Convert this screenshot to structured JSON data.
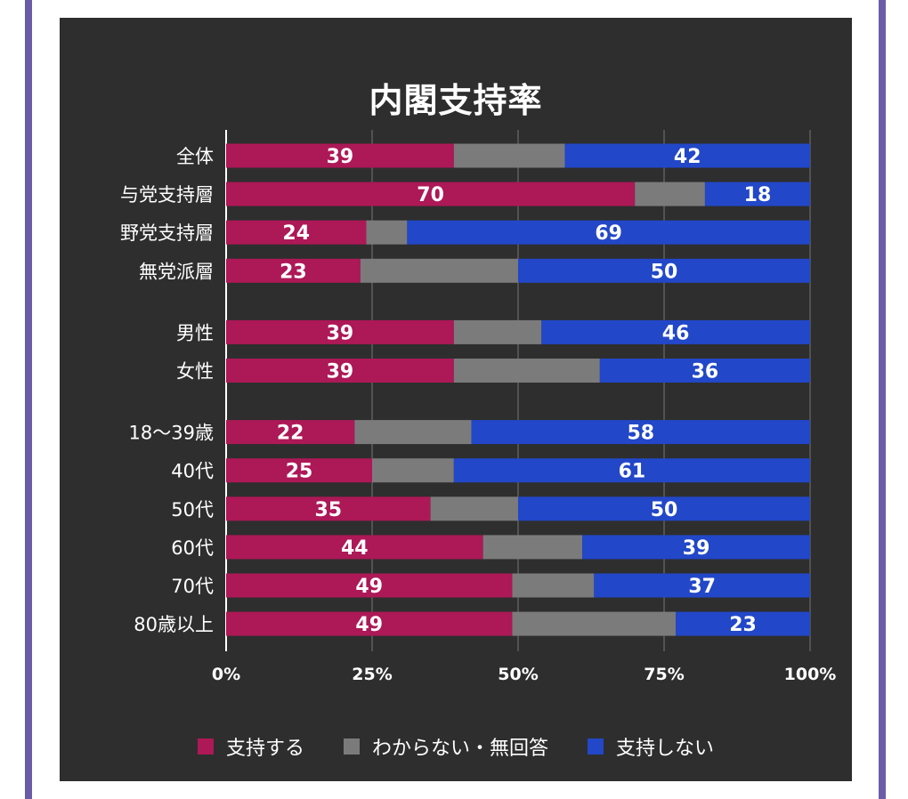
{
  "chart_data": {
    "type": "bar",
    "orientation": "horizontal",
    "stacked": true,
    "title": "内閣支持率",
    "categories": [
      "全体",
      "与党支持層",
      "野党支持層",
      "無党派層",
      "男性",
      "女性",
      "18〜39歳",
      "40代",
      "50代",
      "60代",
      "70代",
      "80歳以上"
    ],
    "groups": [
      [
        0,
        1,
        2,
        3
      ],
      [
        4,
        5
      ],
      [
        6,
        7,
        8,
        9,
        10,
        11
      ]
    ],
    "series": [
      {
        "name": "支持する",
        "color": "#ad1857",
        "values": [
          39,
          70,
          24,
          23,
          39,
          39,
          22,
          25,
          35,
          44,
          49,
          49
        ]
      },
      {
        "name": "わからない・無回答",
        "color": "#7b7b7b",
        "values": [
          19,
          12,
          7,
          27,
          15,
          25,
          20,
          14,
          15,
          17,
          14,
          28
        ]
      },
      {
        "name": "支持しない",
        "color": "#2247c8",
        "values": [
          42,
          18,
          69,
          50,
          46,
          36,
          58,
          61,
          50,
          39,
          37,
          23
        ]
      }
    ],
    "labeled_series": [
      "支持する",
      "支持しない"
    ],
    "xticks": [
      "0%",
      "25%",
      "50%",
      "75%",
      "100%"
    ],
    "xlim": [
      0,
      100
    ],
    "grid": true,
    "legend_position": "bottom"
  },
  "colors": {
    "background": "#2e2e2e",
    "frame": "#6b5ca8",
    "grid": "#777777",
    "text": "#ffffff"
  }
}
